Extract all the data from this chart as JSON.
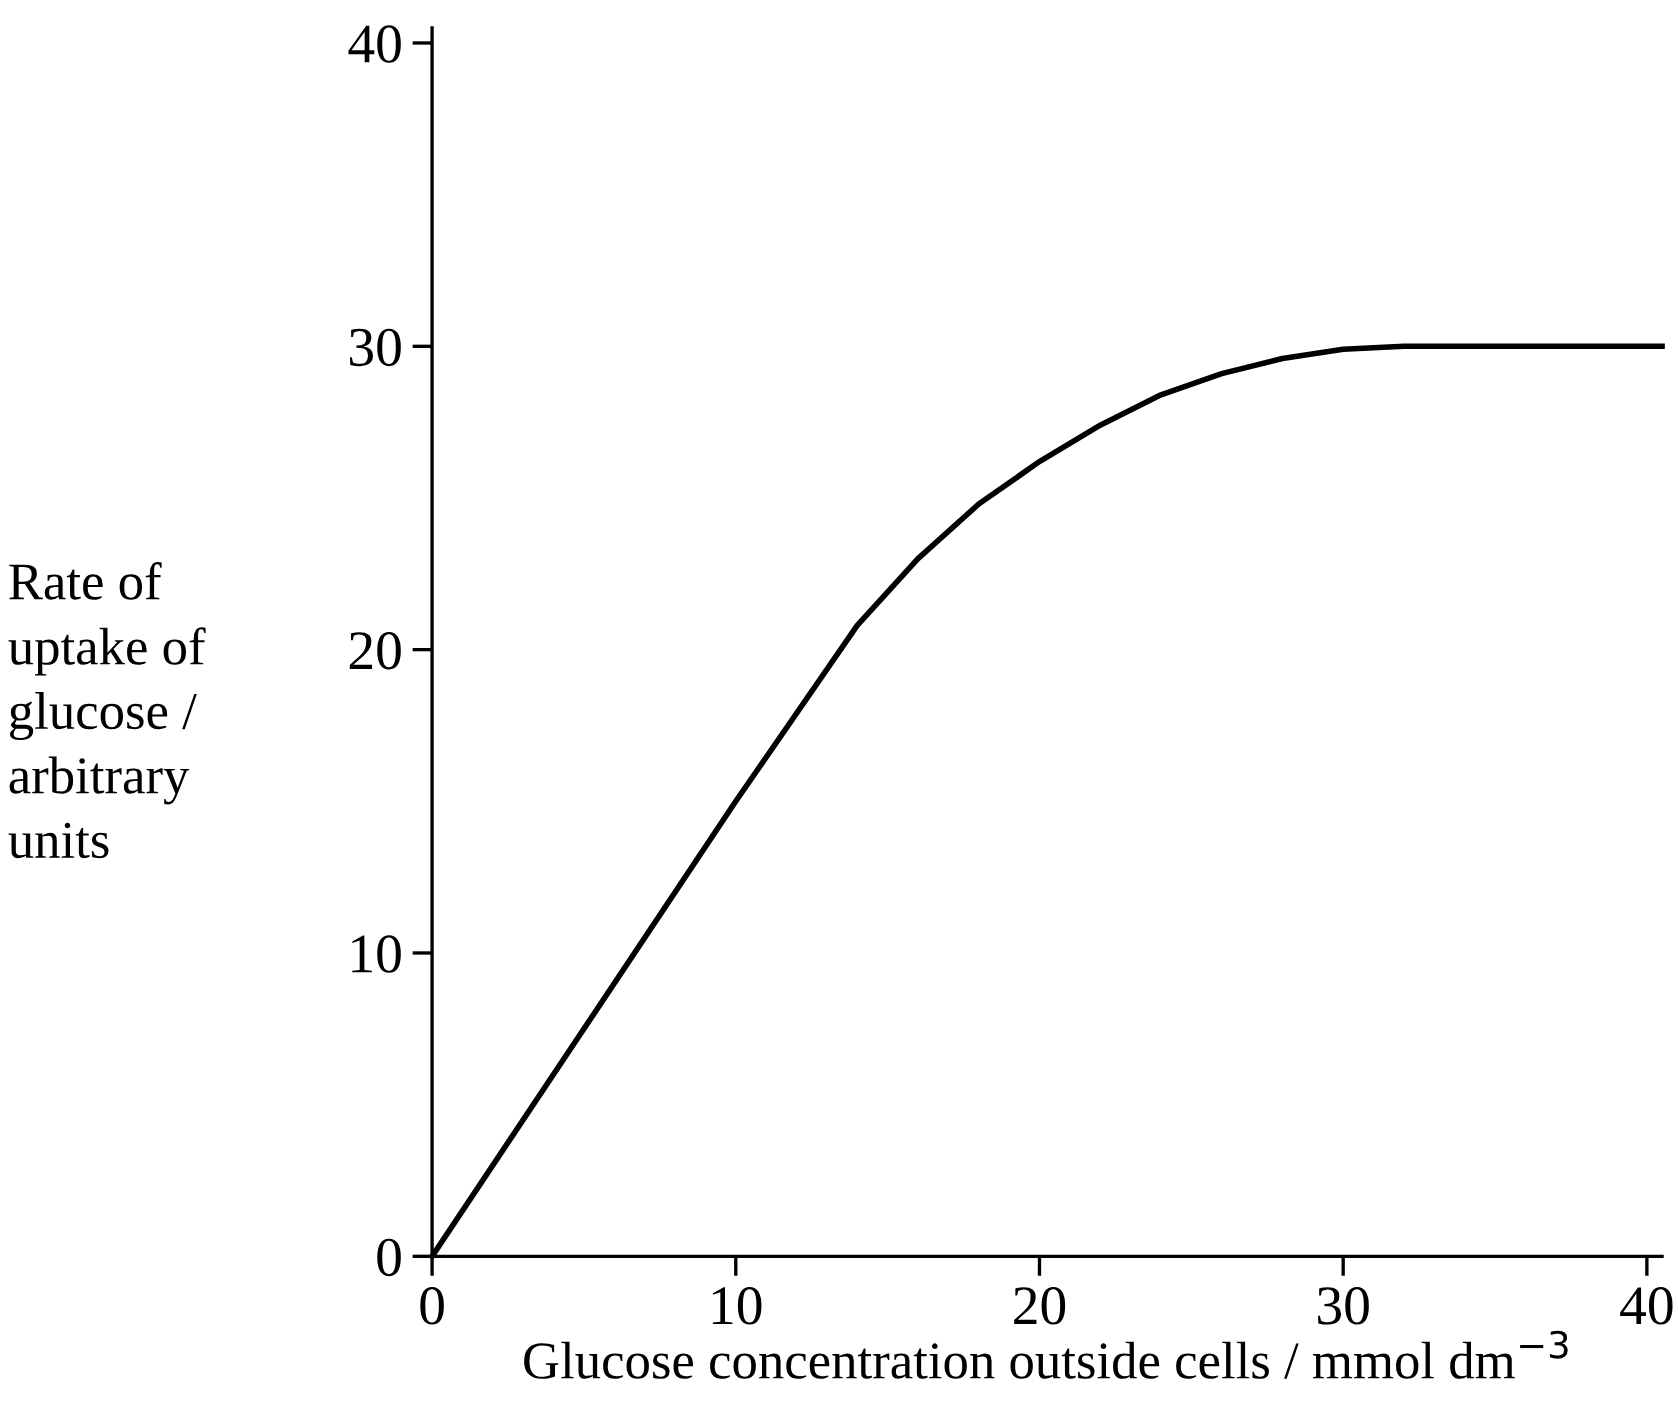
{
  "chart_data": {
    "type": "line",
    "x": [
      0,
      5,
      10,
      14,
      16,
      18,
      20,
      22,
      24,
      26,
      28,
      30,
      32,
      35,
      40.5
    ],
    "values": [
      0,
      7.5,
      15,
      20.8,
      23.0,
      24.8,
      26.2,
      27.4,
      28.4,
      29.1,
      29.6,
      29.9,
      30,
      30,
      30
    ],
    "color": "#000000",
    "xlabel": "Glucose concentration outside cells / mmol dm$^{−3}$",
    "ylabel": "Rate of\nuptake of\nglucose /\narbitrary\nunits",
    "xlim": [
      0,
      40.5
    ],
    "ylim": [
      0,
      40.5
    ],
    "xticks": [
      0,
      10,
      20,
      30,
      40
    ],
    "yticks": [
      0,
      10,
      20,
      30,
      40
    ],
    "grid": false,
    "legend": false,
    "marker": "none",
    "line_style": "solid"
  }
}
